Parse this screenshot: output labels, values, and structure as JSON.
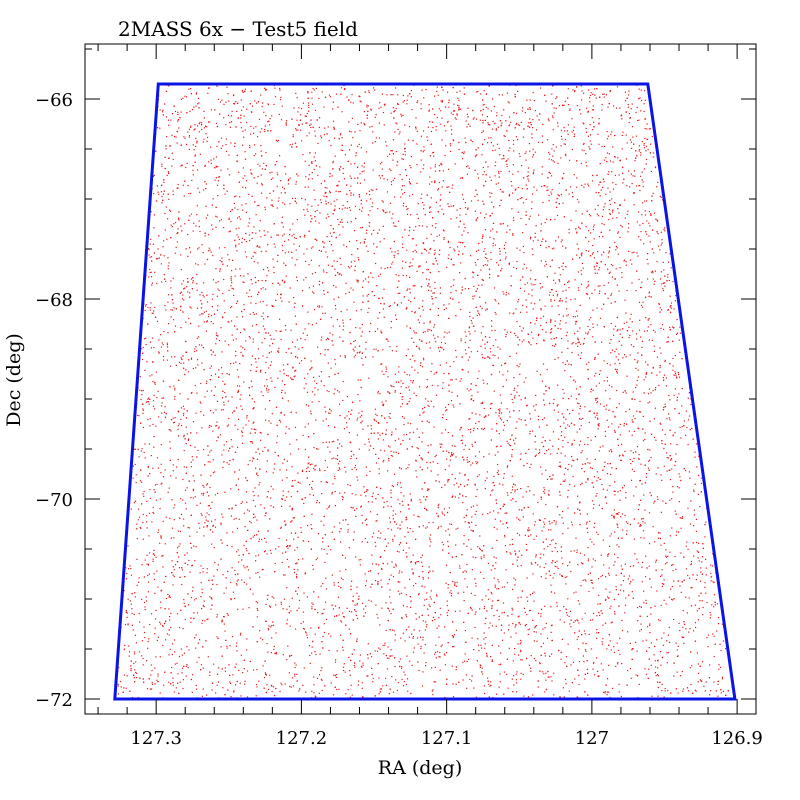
{
  "chart_data": {
    "type": "scatter",
    "title": "2MASS 6x − Test5 field",
    "xlabel": "RA (deg)",
    "ylabel": "Dec (deg)",
    "x_reversed": true,
    "xlim": [
      127.349,
      126.887
    ],
    "ylim": [
      -72.15,
      -65.45
    ],
    "x_ticks": [
      127.3,
      127.2,
      127.1,
      127,
      126.9
    ],
    "x_tick_labels": [
      "127.3",
      "127.2",
      "127.1",
      "127",
      "126.9"
    ],
    "y_ticks": [
      -66,
      -68,
      -70,
      -72
    ],
    "y_tick_labels": [
      "−66",
      "−68",
      "−70",
      "−72"
    ],
    "grid": false,
    "series": [
      {
        "kind": "points",
        "color": "#e8181a",
        "description_of_distribution": "dense uniform star field filling the field boundary",
        "approx_count": 9000
      },
      {
        "kind": "outline",
        "color": "#0a14e6",
        "corners_ra_dec": [
          [
            127.2985,
            -65.85
          ],
          [
            126.9615,
            -65.85
          ],
          [
            126.9015,
            -72.0
          ],
          [
            127.3285,
            -72.0
          ]
        ]
      }
    ]
  }
}
